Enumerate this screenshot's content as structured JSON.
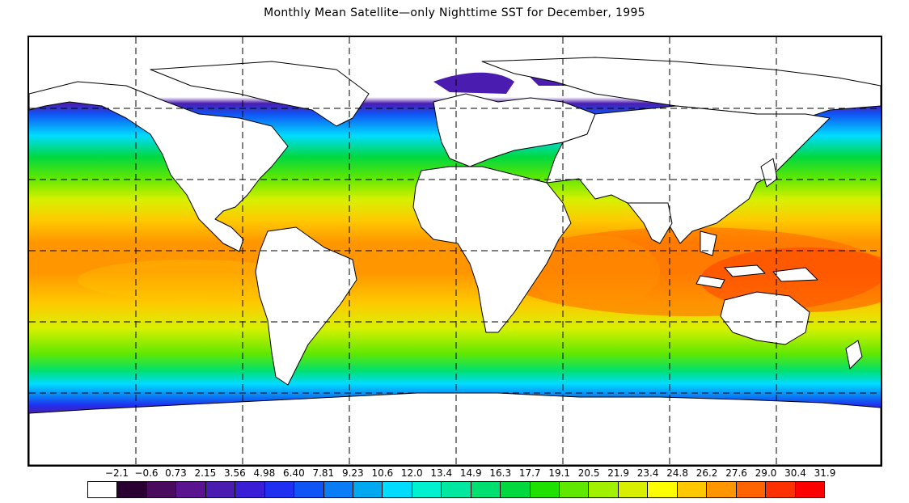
{
  "title": "Monthly Mean Satellite—only Nighttime SST for December, 1995",
  "colorbar": {
    "ticks": [
      "−2.1",
      "−0.6",
      "0.73",
      "2.15",
      "3.56",
      "4.98",
      "6.40",
      "7.81",
      "9.23",
      "10.6",
      "12.0",
      "13.4",
      "14.9",
      "16.3",
      "17.7",
      "19.1",
      "20.5",
      "21.9",
      "23.4",
      "24.8",
      "26.2",
      "27.6",
      "29.0",
      "30.4",
      "31.9"
    ],
    "colors": [
      "#ffffff",
      "#2a0033",
      "#4a0a5e",
      "#5a1490",
      "#4b1cb0",
      "#3a1ed6",
      "#2030f0",
      "#1054f5",
      "#0a7cf5",
      "#00a8f0",
      "#00dcff",
      "#00f0d0",
      "#00e8a0",
      "#00e070",
      "#00d840",
      "#20e000",
      "#60e800",
      "#a0f000",
      "#d8f000",
      "#ffff00",
      "#ffc800",
      "#ff9600",
      "#ff6400",
      "#ff3000",
      "#ff0000"
    ]
  }
}
